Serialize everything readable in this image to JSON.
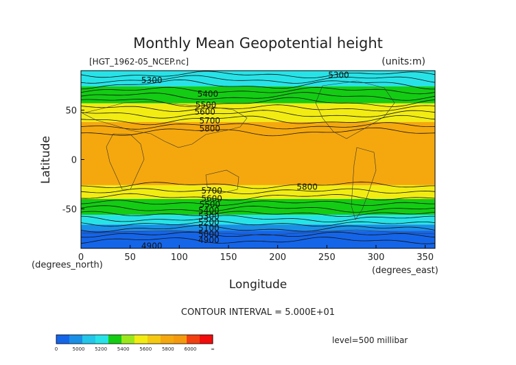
{
  "chart_data": {
    "type": "heatmap",
    "title": "Monthly Mean Geopotential height",
    "file_label": "[HGT_1962-05_NCEP.nc]",
    "units_label": "(units:m)",
    "xlabel": "Longitude",
    "ylabel": "Latitude",
    "x_unit_label": "(degrees_east)",
    "y_unit_label": "(degrees_north)",
    "xlim": [
      0,
      360
    ],
    "ylim": [
      -90,
      90
    ],
    "x_ticks": [
      0,
      50,
      100,
      150,
      200,
      250,
      300,
      350
    ],
    "y_ticks": [
      50,
      0,
      -50
    ],
    "contour_interval_label": "CONTOUR INTERVAL = 5.000E+01",
    "level_label": "level=500 millibar",
    "colorbar": {
      "tick_labels": [
        "0",
        "5000",
        "5200",
        "5400",
        "5600",
        "5800",
        "6000",
        "∞"
      ],
      "colors": [
        "#1565e8",
        "#1a8fe6",
        "#22c6e8",
        "#27e3e8",
        "#13cc13",
        "#9be81a",
        "#f2ec13",
        "#f5c812",
        "#f5a80d",
        "#f59a0d",
        "#f24010",
        "#f20c0c"
      ]
    },
    "bands": [
      {
        "from_lat": 90,
        "to_lat": 74,
        "color": "#27e3e8"
      },
      {
        "from_lat": 74,
        "to_lat": 57,
        "color": "#13cc13"
      },
      {
        "from_lat": 57,
        "to_lat": 38,
        "color": "#f2ec13"
      },
      {
        "from_lat": 38,
        "to_lat": -26,
        "color": "#f5a80d"
      },
      {
        "from_lat": -26,
        "to_lat": -40,
        "color": "#f2ec13"
      },
      {
        "from_lat": -40,
        "to_lat": -56,
        "color": "#13cc13"
      },
      {
        "from_lat": -56,
        "to_lat": -66,
        "color": "#27e3e8"
      },
      {
        "from_lat": -66,
        "to_lat": -72,
        "color": "#1a8fe6"
      },
      {
        "from_lat": -72,
        "to_lat": -90,
        "color": "#1565e8"
      }
    ],
    "contour_labels": [
      {
        "text": "5300",
        "lon": 72,
        "lat": 80
      },
      {
        "text": "5300",
        "lon": 262,
        "lat": 85
      },
      {
        "text": "5400",
        "lon": 129,
        "lat": 66
      },
      {
        "text": "5500",
        "lon": 127,
        "lat": 55
      },
      {
        "text": "5600",
        "lon": 126,
        "lat": 48
      },
      {
        "text": "5700",
        "lon": 131,
        "lat": 39
      },
      {
        "text": "5800",
        "lon": 131,
        "lat": 31
      },
      {
        "text": "5800",
        "lon": 230,
        "lat": -28
      },
      {
        "text": "5700",
        "lon": 133,
        "lat": -32
      },
      {
        "text": "5600",
        "lon": 133,
        "lat": -40
      },
      {
        "text": "5500",
        "lon": 131,
        "lat": -46
      },
      {
        "text": "5400",
        "lon": 130,
        "lat": -52
      },
      {
        "text": "5300",
        "lon": 130,
        "lat": -58
      },
      {
        "text": "5200",
        "lon": 130,
        "lat": -64
      },
      {
        "text": "5100",
        "lon": 130,
        "lat": -70
      },
      {
        "text": "5000",
        "lon": 130,
        "lat": -76
      },
      {
        "text": "4900",
        "lon": 130,
        "lat": -82
      },
      {
        "text": "4900",
        "lon": 72,
        "lat": -88
      }
    ],
    "grid": false
  }
}
